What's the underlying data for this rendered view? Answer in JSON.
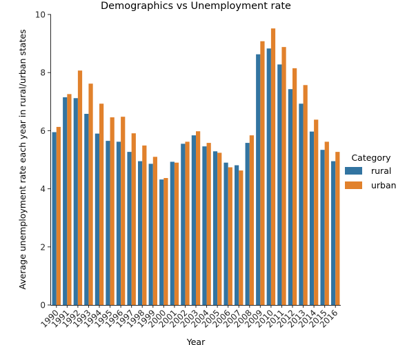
{
  "chart_data": {
    "type": "bar",
    "title": "Demographics vs Unemployment rate",
    "xlabel": "Year",
    "ylabel": "Average unemployment rate each year in rural/urban states",
    "ylim": [
      0,
      10
    ],
    "yticks": [
      "0",
      "2",
      "4",
      "6",
      "8",
      "10"
    ],
    "grid": false,
    "legend": {
      "title": "Category",
      "placement": "right"
    },
    "categories": [
      "1990",
      "1991",
      "1992",
      "1993",
      "1994",
      "1995",
      "1996",
      "1997",
      "1998",
      "1999",
      "2000",
      "2001",
      "2002",
      "2003",
      "2004",
      "2005",
      "2006",
      "2007",
      "2008",
      "2009",
      "2010",
      "2011",
      "2012",
      "2013",
      "2014",
      "2015",
      "2016"
    ],
    "series": [
      {
        "name": "rural",
        "color": "#3274a1",
        "values": [
          5.95,
          7.15,
          7.12,
          6.58,
          5.9,
          5.65,
          5.62,
          5.27,
          4.95,
          4.86,
          4.32,
          4.93,
          5.55,
          5.84,
          5.46,
          5.29,
          4.9,
          4.81,
          5.58,
          8.63,
          8.83,
          8.28,
          7.43,
          6.93,
          5.97,
          5.34,
          4.95
        ]
      },
      {
        "name": "urban",
        "color": "#e1812c",
        "values": [
          6.13,
          7.26,
          8.07,
          7.62,
          6.93,
          6.46,
          6.48,
          5.91,
          5.49,
          5.1,
          4.37,
          4.9,
          5.62,
          5.98,
          5.58,
          5.24,
          4.74,
          4.63,
          5.84,
          9.08,
          9.52,
          8.88,
          8.15,
          7.57,
          6.38,
          5.62,
          5.27
        ]
      }
    ]
  }
}
